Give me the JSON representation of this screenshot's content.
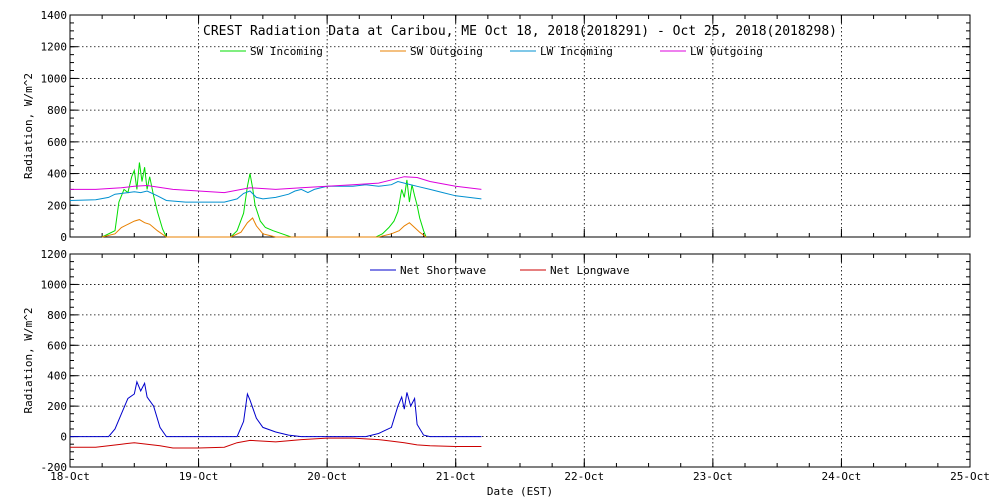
{
  "chart_data": [
    {
      "type": "line",
      "title": "CREST Radiation Data at Caribou, ME   Oct 18, 2018(2018291) - Oct 25, 2018(2018298)",
      "ylabel": "Radiation, W/m^2",
      "xlabel": "",
      "xlim": [
        0,
        7
      ],
      "ylim": [
        0,
        1400
      ],
      "yticks": [
        0,
        200,
        400,
        600,
        800,
        1000,
        1200,
        1400
      ],
      "grid": true,
      "legend_position": "top",
      "series": [
        {
          "name": "SW Incoming",
          "color": "#00dd00",
          "points": [
            [
              0.25,
              0
            ],
            [
              0.35,
              40
            ],
            [
              0.38,
              220
            ],
            [
              0.42,
              300
            ],
            [
              0.45,
              280
            ],
            [
              0.48,
              380
            ],
            [
              0.5,
              420
            ],
            [
              0.52,
              300
            ],
            [
              0.54,
              470
            ],
            [
              0.56,
              350
            ],
            [
              0.58,
              440
            ],
            [
              0.6,
              300
            ],
            [
              0.62,
              380
            ],
            [
              0.65,
              260
            ],
            [
              0.68,
              160
            ],
            [
              0.72,
              50
            ],
            [
              0.75,
              0
            ],
            [
              1.25,
              0
            ],
            [
              1.3,
              40
            ],
            [
              1.35,
              150
            ],
            [
              1.38,
              320
            ],
            [
              1.4,
              400
            ],
            [
              1.42,
              310
            ],
            [
              1.44,
              200
            ],
            [
              1.48,
              100
            ],
            [
              1.52,
              60
            ],
            [
              1.58,
              40
            ],
            [
              1.65,
              20
            ],
            [
              1.72,
              0
            ],
            [
              2.38,
              0
            ],
            [
              2.43,
              20
            ],
            [
              2.48,
              60
            ],
            [
              2.52,
              100
            ],
            [
              2.55,
              160
            ],
            [
              2.58,
              300
            ],
            [
              2.6,
              250
            ],
            [
              2.62,
              360
            ],
            [
              2.64,
              220
            ],
            [
              2.66,
              330
            ],
            [
              2.68,
              260
            ],
            [
              2.7,
              200
            ],
            [
              2.72,
              120
            ],
            [
              2.75,
              40
            ],
            [
              2.77,
              0
            ]
          ]
        },
        {
          "name": "SW Outgoing",
          "color": "#e88000",
          "points": [
            [
              0.25,
              0
            ],
            [
              0.35,
              20
            ],
            [
              0.4,
              60
            ],
            [
              0.45,
              80
            ],
            [
              0.5,
              100
            ],
            [
              0.54,
              110
            ],
            [
              0.58,
              90
            ],
            [
              0.62,
              80
            ],
            [
              0.68,
              40
            ],
            [
              0.75,
              0
            ],
            [
              1.25,
              0
            ],
            [
              1.33,
              30
            ],
            [
              1.38,
              90
            ],
            [
              1.42,
              120
            ],
            [
              1.45,
              70
            ],
            [
              1.5,
              20
            ],
            [
              1.6,
              0
            ],
            [
              2.4,
              0
            ],
            [
              2.5,
              20
            ],
            [
              2.56,
              40
            ],
            [
              2.6,
              70
            ],
            [
              2.64,
              90
            ],
            [
              2.68,
              60
            ],
            [
              2.72,
              30
            ],
            [
              2.77,
              0
            ]
          ]
        },
        {
          "name": "LW Incoming",
          "color": "#0090d0",
          "points": [
            [
              0,
              230
            ],
            [
              0.2,
              235
            ],
            [
              0.3,
              250
            ],
            [
              0.35,
              270
            ],
            [
              0.45,
              280
            ],
            [
              0.5,
              285
            ],
            [
              0.55,
              280
            ],
            [
              0.6,
              290
            ],
            [
              0.68,
              260
            ],
            [
              0.75,
              230
            ],
            [
              0.9,
              220
            ],
            [
              1.0,
              220
            ],
            [
              1.2,
              220
            ],
            [
              1.3,
              240
            ],
            [
              1.35,
              275
            ],
            [
              1.4,
              290
            ],
            [
              1.45,
              250
            ],
            [
              1.5,
              240
            ],
            [
              1.6,
              250
            ],
            [
              1.7,
              270
            ],
            [
              1.75,
              290
            ],
            [
              1.8,
              300
            ],
            [
              1.85,
              280
            ],
            [
              1.9,
              300
            ],
            [
              2.0,
              320
            ],
            [
              2.2,
              320
            ],
            [
              2.3,
              330
            ],
            [
              2.4,
              320
            ],
            [
              2.5,
              330
            ],
            [
              2.55,
              350
            ],
            [
              2.6,
              340
            ],
            [
              2.7,
              320
            ],
            [
              2.8,
              300
            ],
            [
              2.9,
              280
            ],
            [
              3.0,
              260
            ],
            [
              3.2,
              240
            ]
          ]
        },
        {
          "name": "LW Outgoing",
          "color": "#dd00dd",
          "points": [
            [
              0,
              300
            ],
            [
              0.2,
              300
            ],
            [
              0.4,
              310
            ],
            [
              0.5,
              320
            ],
            [
              0.6,
              325
            ],
            [
              0.8,
              300
            ],
            [
              1.0,
              290
            ],
            [
              1.2,
              280
            ],
            [
              1.4,
              310
            ],
            [
              1.6,
              300
            ],
            [
              1.8,
              310
            ],
            [
              2.0,
              320
            ],
            [
              2.2,
              330
            ],
            [
              2.4,
              340
            ],
            [
              2.6,
              380
            ],
            [
              2.7,
              375
            ],
            [
              2.8,
              350
            ],
            [
              3.0,
              320
            ],
            [
              3.2,
              300
            ]
          ]
        }
      ]
    },
    {
      "type": "line",
      "title": "",
      "ylabel": "Radiation, W/m^2",
      "xlabel": "Date (EST)",
      "xlim": [
        0,
        7
      ],
      "ylim": [
        -200,
        1200
      ],
      "yticks": [
        -200,
        0,
        200,
        400,
        600,
        800,
        1000,
        1200
      ],
      "xticks": [
        "18-Oct",
        "19-Oct",
        "20-Oct",
        "21-Oct",
        "22-Oct",
        "23-Oct",
        "24-Oct",
        "25-Oct"
      ],
      "grid": true,
      "legend_position": "top",
      "series": [
        {
          "name": "Net Shortwave",
          "color": "#0000cc",
          "points": [
            [
              0,
              0
            ],
            [
              0.3,
              0
            ],
            [
              0.35,
              50
            ],
            [
              0.4,
              150
            ],
            [
              0.45,
              250
            ],
            [
              0.5,
              280
            ],
            [
              0.52,
              360
            ],
            [
              0.55,
              300
            ],
            [
              0.58,
              350
            ],
            [
              0.6,
              260
            ],
            [
              0.65,
              200
            ],
            [
              0.7,
              60
            ],
            [
              0.75,
              0
            ],
            [
              1.3,
              0
            ],
            [
              1.35,
              100
            ],
            [
              1.38,
              280
            ],
            [
              1.4,
              240
            ],
            [
              1.45,
              120
            ],
            [
              1.5,
              60
            ],
            [
              1.6,
              30
            ],
            [
              1.7,
              10
            ],
            [
              1.8,
              0
            ],
            [
              2.3,
              0
            ],
            [
              2.4,
              20
            ],
            [
              2.5,
              60
            ],
            [
              2.55,
              200
            ],
            [
              2.58,
              260
            ],
            [
              2.6,
              180
            ],
            [
              2.62,
              290
            ],
            [
              2.65,
              200
            ],
            [
              2.68,
              250
            ],
            [
              2.7,
              80
            ],
            [
              2.75,
              10
            ],
            [
              2.8,
              0
            ],
            [
              3.2,
              0
            ]
          ]
        },
        {
          "name": "Net Longwave",
          "color": "#cc0000",
          "points": [
            [
              0,
              -70
            ],
            [
              0.2,
              -70
            ],
            [
              0.3,
              -60
            ],
            [
              0.4,
              -50
            ],
            [
              0.5,
              -40
            ],
            [
              0.6,
              -50
            ],
            [
              0.7,
              -60
            ],
            [
              0.8,
              -75
            ],
            [
              1.0,
              -75
            ],
            [
              1.2,
              -70
            ],
            [
              1.3,
              -40
            ],
            [
              1.4,
              -25
            ],
            [
              1.5,
              -30
            ],
            [
              1.6,
              -35
            ],
            [
              1.8,
              -20
            ],
            [
              2.0,
              -10
            ],
            [
              2.2,
              -10
            ],
            [
              2.4,
              -20
            ],
            [
              2.5,
              -30
            ],
            [
              2.6,
              -40
            ],
            [
              2.7,
              -55
            ],
            [
              2.8,
              -60
            ],
            [
              3.0,
              -65
            ],
            [
              3.2,
              -65
            ]
          ]
        }
      ]
    }
  ]
}
